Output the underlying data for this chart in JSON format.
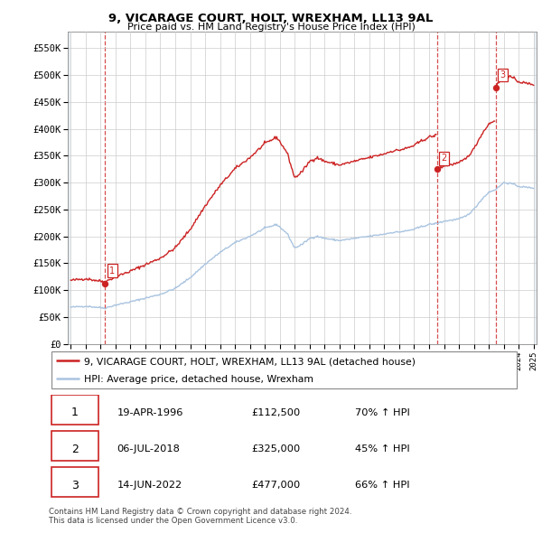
{
  "title1": "9, VICARAGE COURT, HOLT, WREXHAM, LL13 9AL",
  "title2": "Price paid vs. HM Land Registry's House Price Index (HPI)",
  "ylim": [
    0,
    580000
  ],
  "yticks": [
    0,
    50000,
    100000,
    150000,
    200000,
    250000,
    300000,
    350000,
    400000,
    450000,
    500000,
    550000
  ],
  "ytick_labels": [
    "£0",
    "£50K",
    "£100K",
    "£150K",
    "£200K",
    "£250K",
    "£300K",
    "£350K",
    "£400K",
    "£450K",
    "£500K",
    "£550K"
  ],
  "hpi_color": "#aac4e0",
  "sale_color": "#cc2222",
  "sale_dates": [
    1996.3,
    2018.52,
    2022.45
  ],
  "sale_prices": [
    112500,
    325000,
    477000
  ],
  "sale_labels": [
    "1",
    "2",
    "3"
  ],
  "vline_dates": [
    1996.3,
    2018.52,
    2022.45
  ],
  "legend_sale_label": "9, VICARAGE COURT, HOLT, WREXHAM, LL13 9AL (detached house)",
  "legend_hpi_label": "HPI: Average price, detached house, Wrexham",
  "table_rows": [
    [
      "1",
      "19-APR-1996",
      "£112,500",
      "70% ↑ HPI"
    ],
    [
      "2",
      "06-JUL-2018",
      "£325,000",
      "45% ↑ HPI"
    ],
    [
      "3",
      "14-JUN-2022",
      "£477,000",
      "66% ↑ HPI"
    ]
  ],
  "footnote": "Contains HM Land Registry data © Crown copyright and database right 2024.\nThis data is licensed under the Open Government Licence v3.0.",
  "grid_color": "#cccccc",
  "hatch_bg_color": "#e8eef4",
  "white_bg": "#ffffff"
}
